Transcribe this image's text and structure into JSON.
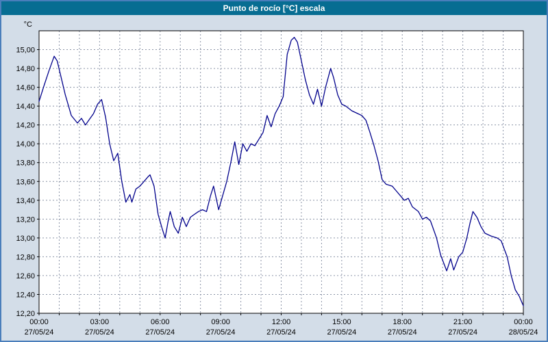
{
  "window": {
    "title": "Punto de rocío [°C] escala"
  },
  "chart_data": {
    "type": "line",
    "title": "Punto de rocío [°C] escala",
    "series_name": "Punto de rocío",
    "unit_label": "°C",
    "xlim": [
      0,
      24
    ],
    "ylim": [
      12.2,
      15.2
    ],
    "grid": {
      "x_step_hours": 1,
      "y_step": 0.2,
      "style": "dashed",
      "on": true
    },
    "legend_position": "none",
    "y_tick_values": [
      15.0,
      14.8,
      14.6,
      14.4,
      14.2,
      14.0,
      13.8,
      13.6,
      13.4,
      13.2,
      13.0,
      12.8,
      12.6,
      12.4,
      12.2
    ],
    "y_tick_labels": [
      "15,00",
      "14,80",
      "14,60",
      "14,40",
      "14,20",
      "14,00",
      "13,80",
      "13,60",
      "13,40",
      "13,20",
      "13,00",
      "12,80",
      "12,60",
      "12,40",
      "12,20"
    ],
    "x_ticks": [
      {
        "hour": 0,
        "time": "00:00",
        "date": "27/05/24"
      },
      {
        "hour": 3,
        "time": "03:00",
        "date": "27/05/24"
      },
      {
        "hour": 6,
        "time": "06:00",
        "date": "27/05/24"
      },
      {
        "hour": 9,
        "time": "09:00",
        "date": "27/05/24"
      },
      {
        "hour": 12,
        "time": "12:00",
        "date": "27/05/24"
      },
      {
        "hour": 15,
        "time": "15:00",
        "date": "27/05/24"
      },
      {
        "hour": 18,
        "time": "18:00",
        "date": "27/05/24"
      },
      {
        "hour": 21,
        "time": "21:00",
        "date": "27/05/24"
      },
      {
        "hour": 24,
        "time": "00:00",
        "date": "28/05/24"
      }
    ],
    "x_hours": [
      0,
      0.25,
      0.5,
      0.75,
      0.9,
      1.1,
      1.3,
      1.6,
      1.9,
      2.1,
      2.3,
      2.5,
      2.7,
      2.9,
      3.1,
      3.3,
      3.5,
      3.7,
      3.9,
      4.1,
      4.3,
      4.5,
      4.6,
      4.8,
      5.0,
      5.2,
      5.4,
      5.5,
      5.7,
      5.9,
      6.1,
      6.25,
      6.4,
      6.5,
      6.7,
      6.9,
      7.1,
      7.3,
      7.5,
      7.7,
      7.9,
      8.1,
      8.3,
      8.5,
      8.65,
      8.9,
      9.1,
      9.3,
      9.5,
      9.7,
      9.9,
      10.1,
      10.3,
      10.5,
      10.7,
      10.9,
      11.1,
      11.3,
      11.5,
      11.7,
      11.9,
      12.1,
      12.3,
      12.5,
      12.65,
      12.8,
      13.0,
      13.2,
      13.4,
      13.6,
      13.8,
      14.0,
      14.2,
      14.45,
      14.6,
      14.8,
      15.0,
      15.2,
      15.5,
      15.8,
      16.0,
      16.2,
      16.4,
      16.6,
      16.8,
      17.0,
      17.2,
      17.5,
      17.7,
      17.9,
      18.1,
      18.3,
      18.5,
      18.8,
      19.0,
      19.2,
      19.4,
      19.7,
      19.9,
      20.2,
      20.4,
      20.55,
      20.8,
      21.0,
      21.2,
      21.35,
      21.5,
      21.7,
      21.9,
      22.1,
      22.4,
      22.7,
      22.9,
      23.2,
      23.4,
      23.6,
      23.8,
      24.0
    ],
    "values": [
      14.45,
      14.62,
      14.78,
      14.93,
      14.88,
      14.7,
      14.52,
      14.3,
      14.22,
      14.27,
      14.2,
      14.26,
      14.32,
      14.42,
      14.47,
      14.28,
      14.0,
      13.82,
      13.9,
      13.6,
      13.38,
      13.46,
      13.38,
      13.52,
      13.55,
      13.6,
      13.65,
      13.67,
      13.55,
      13.25,
      13.1,
      13.0,
      13.18,
      13.28,
      13.12,
      13.05,
      13.22,
      13.12,
      13.22,
      13.25,
      13.28,
      13.3,
      13.28,
      13.45,
      13.55,
      13.3,
      13.45,
      13.6,
      13.8,
      14.02,
      13.78,
      14.0,
      13.92,
      14.0,
      13.98,
      14.05,
      14.12,
      14.3,
      14.18,
      14.32,
      14.4,
      14.5,
      14.95,
      15.1,
      15.13,
      15.08,
      14.88,
      14.68,
      14.52,
      14.42,
      14.58,
      14.4,
      14.6,
      14.8,
      14.7,
      14.52,
      14.42,
      14.4,
      14.35,
      14.32,
      14.3,
      14.25,
      14.12,
      13.98,
      13.82,
      13.62,
      13.57,
      13.55,
      13.5,
      13.45,
      13.4,
      13.42,
      13.33,
      13.28,
      13.2,
      13.22,
      13.18,
      13.0,
      12.82,
      12.65,
      12.78,
      12.66,
      12.8,
      12.85,
      13.0,
      13.15,
      13.28,
      13.22,
      13.12,
      13.05,
      13.02,
      13.0,
      12.97,
      12.8,
      12.6,
      12.45,
      12.38,
      12.28
    ],
    "colors": {
      "line": "#00008b",
      "titlebar_bg": "#076d92",
      "titlebar_text": "#ffffff",
      "background": "#d3dde8",
      "plot_bg": "#ffffff",
      "grid": "#8a93a6",
      "axis": "#000000",
      "window_border": "#4a7ebb"
    }
  }
}
